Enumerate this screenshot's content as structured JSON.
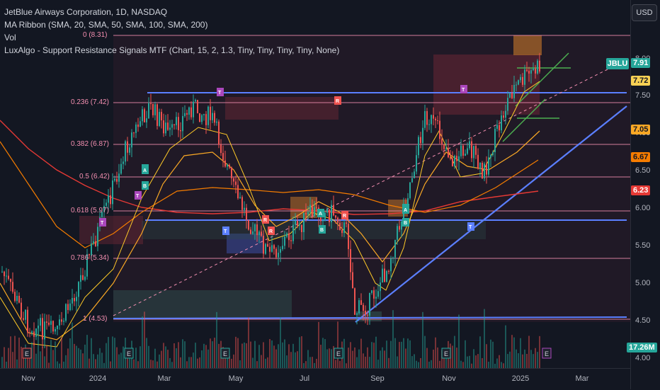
{
  "legend": {
    "title": "JetBlue Airways Corporation, 1D, NASDAQ",
    "ma_ribbon": "MA Ribbon (SMA, 20, SMA, 50, SMA, 100, SMA, 200)",
    "vol": "Vol",
    "luxalgo": "LuxAlgo - Support Resistance Signals MTF (Chart, 15, 2, 1.3, Tiny, Tiny, Tiny, Tiny, None)"
  },
  "currency_button": "USD",
  "symbol_tag": "JBLU",
  "price_ticks": [
    "8.00",
    "7.50",
    "7.00",
    "6.50",
    "6.00",
    "5.50",
    "5.00",
    "4.50",
    "4.00"
  ],
  "price_tags": [
    {
      "value": "7.91",
      "color": "#26a69a"
    },
    {
      "value": "7.72",
      "color": "#f7d154"
    },
    {
      "value": "7.05",
      "color": "#f9a825"
    },
    {
      "value": "6.67",
      "color": "#f57c00"
    },
    {
      "value": "6.23",
      "color": "#e53935"
    },
    {
      "value": "17.26M",
      "color": "#26a69a"
    }
  ],
  "fib_levels": [
    {
      "label": "0 (8.31)"
    },
    {
      "label": "0.236 (7.42)"
    },
    {
      "label": "0.382 (6.87)"
    },
    {
      "label": "0.5 (6.42)"
    },
    {
      "label": "0.618 (5.97)"
    },
    {
      "label": "0.786 (5.34)"
    },
    {
      "label": "1 (4.53)"
    }
  ],
  "time_labels": [
    "Nov",
    "2024",
    "Mar",
    "May",
    "Jul",
    "Sep",
    "Nov",
    "2025",
    "Mar"
  ],
  "colors": {
    "background": "#131722",
    "up": "#26a69a",
    "down": "#ef5350",
    "blue_line": "#5b7fff",
    "fib": "#f48fb1"
  }
}
